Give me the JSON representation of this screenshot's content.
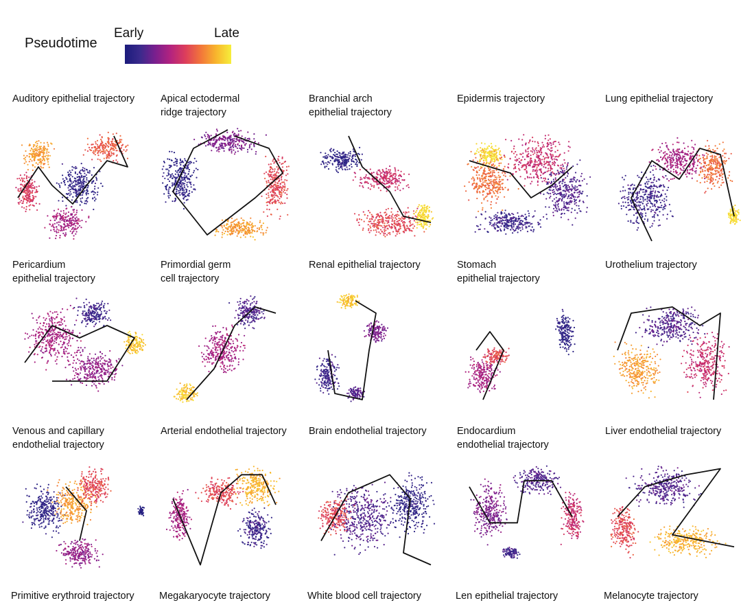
{
  "legend": {
    "title": "Pseudotime",
    "early_label": "Early",
    "late_label": "Late",
    "colors": [
      "#1b1b7c",
      "#3a2a8c",
      "#7a1f8e",
      "#b3237f",
      "#dd3e5b",
      "#f2763a",
      "#f8b52d",
      "#f6ee3b"
    ]
  },
  "chart_data": [
    {
      "type": "scatter",
      "title": "Auditory epithelial trajectory",
      "x_range": [
        0,
        1
      ],
      "y_range": [
        0,
        1
      ],
      "blobs": [
        [
          0.5,
          0.5,
          0.2,
          0.22,
          0.1
        ],
        [
          0.2,
          0.25,
          0.14,
          0.15,
          0.8
        ],
        [
          0.7,
          0.2,
          0.2,
          0.14,
          0.65
        ],
        [
          0.4,
          0.8,
          0.18,
          0.15,
          0.4
        ],
        [
          0.12,
          0.55,
          0.1,
          0.2,
          0.55
        ]
      ],
      "trajectory": [
        [
          0.05,
          0.6
        ],
        [
          0.2,
          0.35
        ],
        [
          0.3,
          0.5
        ],
        [
          0.45,
          0.65
        ],
        [
          0.55,
          0.5
        ],
        [
          0.7,
          0.3
        ],
        [
          0.85,
          0.35
        ],
        [
          0.75,
          0.1
        ]
      ]
    },
    {
      "type": "scatter",
      "title": "Apical ectodermal\nridge trajectory",
      "x_range": [
        0,
        1
      ],
      "y_range": [
        0,
        1
      ],
      "blobs": [
        [
          0.15,
          0.45,
          0.16,
          0.3,
          0.1
        ],
        [
          0.5,
          0.15,
          0.3,
          0.12,
          0.3
        ],
        [
          0.85,
          0.5,
          0.12,
          0.3,
          0.6
        ],
        [
          0.6,
          0.85,
          0.25,
          0.1,
          0.8
        ]
      ],
      "trajectory": [
        [
          0.5,
          0.05
        ],
        [
          0.25,
          0.2
        ],
        [
          0.1,
          0.55
        ],
        [
          0.35,
          0.9
        ],
        [
          0.7,
          0.6
        ],
        [
          0.9,
          0.4
        ],
        [
          0.8,
          0.2
        ],
        [
          0.55,
          0.1
        ]
      ]
    },
    {
      "type": "scatter",
      "title": "Branchial arch\nepithelial trajectory",
      "x_range": [
        0,
        1
      ],
      "y_range": [
        0,
        1
      ],
      "blobs": [
        [
          0.25,
          0.3,
          0.2,
          0.12,
          0.1
        ],
        [
          0.55,
          0.45,
          0.25,
          0.12,
          0.5
        ],
        [
          0.6,
          0.8,
          0.3,
          0.15,
          0.6
        ],
        [
          0.85,
          0.75,
          0.08,
          0.15,
          0.95
        ]
      ],
      "trajectory": [
        [
          0.3,
          0.1
        ],
        [
          0.4,
          0.35
        ],
        [
          0.6,
          0.55
        ],
        [
          0.7,
          0.75
        ],
        [
          0.9,
          0.8
        ]
      ]
    },
    {
      "type": "scatter",
      "title": "Epidermis trajectory",
      "x_range": [
        0,
        1
      ],
      "y_range": [
        0,
        1
      ],
      "blobs": [
        [
          0.25,
          0.45,
          0.22,
          0.3,
          0.7
        ],
        [
          0.6,
          0.3,
          0.3,
          0.25,
          0.5
        ],
        [
          0.8,
          0.55,
          0.2,
          0.3,
          0.2
        ],
        [
          0.4,
          0.8,
          0.3,
          0.12,
          0.15
        ],
        [
          0.25,
          0.25,
          0.12,
          0.12,
          0.95
        ]
      ],
      "trajectory": [
        [
          0.1,
          0.3
        ],
        [
          0.4,
          0.4
        ],
        [
          0.55,
          0.6
        ],
        [
          0.7,
          0.5
        ],
        [
          0.85,
          0.35
        ]
      ]
    },
    {
      "type": "scatter",
      "title": "Lung epithelial trajectory",
      "x_range": [
        0,
        1
      ],
      "y_range": [
        0,
        1
      ],
      "blobs": [
        [
          0.3,
          0.6,
          0.25,
          0.3,
          0.15
        ],
        [
          0.55,
          0.3,
          0.25,
          0.2,
          0.4
        ],
        [
          0.8,
          0.35,
          0.15,
          0.25,
          0.7
        ],
        [
          0.95,
          0.75,
          0.06,
          0.1,
          0.95
        ]
      ],
      "trajectory": [
        [
          0.35,
          0.95
        ],
        [
          0.2,
          0.6
        ],
        [
          0.35,
          0.3
        ],
        [
          0.55,
          0.45
        ],
        [
          0.7,
          0.2
        ],
        [
          0.85,
          0.25
        ],
        [
          0.95,
          0.75
        ]
      ]
    },
    {
      "type": "scatter",
      "title": "Pericardium\nepithelial trajectory",
      "x_range": [
        0,
        1
      ],
      "y_range": [
        0,
        1
      ],
      "blobs": [
        [
          0.3,
          0.4,
          0.25,
          0.3,
          0.4
        ],
        [
          0.6,
          0.2,
          0.15,
          0.15,
          0.15
        ],
        [
          0.6,
          0.65,
          0.25,
          0.2,
          0.35
        ],
        [
          0.9,
          0.45,
          0.1,
          0.12,
          0.9
        ]
      ],
      "trajectory": [
        [
          0.1,
          0.6
        ],
        [
          0.3,
          0.3
        ],
        [
          0.5,
          0.4
        ],
        [
          0.7,
          0.3
        ],
        [
          0.9,
          0.4
        ],
        [
          0.7,
          0.75
        ],
        [
          0.3,
          0.75
        ]
      ]
    },
    {
      "type": "scatter",
      "title": "Primordial germ\ncell trajectory",
      "x_range": [
        0,
        1
      ],
      "y_range": [
        0,
        1
      ],
      "blobs": [
        [
          0.45,
          0.5,
          0.2,
          0.25,
          0.4
        ],
        [
          0.65,
          0.2,
          0.15,
          0.15,
          0.2
        ],
        [
          0.2,
          0.85,
          0.1,
          0.1,
          0.9
        ]
      ],
      "trajectory": [
        [
          0.2,
          0.9
        ],
        [
          0.4,
          0.65
        ],
        [
          0.55,
          0.3
        ],
        [
          0.7,
          0.15
        ],
        [
          0.85,
          0.2
        ]
      ]
    },
    {
      "type": "scatter",
      "title": "Renal epithelial trajectory",
      "x_range": [
        0,
        1
      ],
      "y_range": [
        0,
        1
      ],
      "blobs": [
        [
          0.15,
          0.7,
          0.1,
          0.2,
          0.15
        ],
        [
          0.3,
          0.1,
          0.1,
          0.08,
          0.9
        ],
        [
          0.5,
          0.35,
          0.1,
          0.12,
          0.3
        ],
        [
          0.35,
          0.85,
          0.08,
          0.08,
          0.2
        ]
      ],
      "trajectory": [
        [
          0.15,
          0.5
        ],
        [
          0.2,
          0.85
        ],
        [
          0.4,
          0.9
        ],
        [
          0.45,
          0.5
        ],
        [
          0.5,
          0.2
        ],
        [
          0.35,
          0.1
        ]
      ]
    },
    {
      "type": "scatter",
      "title": "Stomach\nepithelial trajectory",
      "x_range": [
        0,
        1
      ],
      "y_range": [
        0,
        1
      ],
      "blobs": [
        [
          0.2,
          0.7,
          0.15,
          0.2,
          0.4
        ],
        [
          0.8,
          0.35,
          0.08,
          0.2,
          0.1
        ],
        [
          0.3,
          0.55,
          0.12,
          0.08,
          0.6
        ]
      ],
      "trajectory": [
        [
          0.15,
          0.5
        ],
        [
          0.25,
          0.35
        ],
        [
          0.35,
          0.5
        ],
        [
          0.2,
          0.9
        ]
      ]
    },
    {
      "type": "scatter",
      "title": "Urothelium trajectory",
      "x_range": [
        0,
        1
      ],
      "y_range": [
        0,
        1
      ],
      "blobs": [
        [
          0.5,
          0.3,
          0.3,
          0.2,
          0.2
        ],
        [
          0.25,
          0.65,
          0.2,
          0.25,
          0.8
        ],
        [
          0.75,
          0.6,
          0.2,
          0.3,
          0.5
        ]
      ],
      "trajectory": [
        [
          0.1,
          0.5
        ],
        [
          0.2,
          0.2
        ],
        [
          0.5,
          0.15
        ],
        [
          0.7,
          0.3
        ],
        [
          0.85,
          0.2
        ],
        [
          0.8,
          0.9
        ]
      ]
    },
    {
      "type": "scatter",
      "title": "Venous and capillary\nendothelial trajectory",
      "x_range": [
        0,
        1
      ],
      "y_range": [
        0,
        1
      ],
      "blobs": [
        [
          0.25,
          0.45,
          0.18,
          0.25,
          0.1
        ],
        [
          0.45,
          0.4,
          0.2,
          0.25,
          0.8
        ],
        [
          0.6,
          0.25,
          0.15,
          0.2,
          0.6
        ],
        [
          0.5,
          0.8,
          0.2,
          0.15,
          0.35
        ],
        [
          0.95,
          0.45,
          0.03,
          0.05,
          0.05
        ]
      ],
      "trajectory": [
        [
          0.4,
          0.25
        ],
        [
          0.55,
          0.45
        ],
        [
          0.5,
          0.7
        ]
      ]
    },
    {
      "type": "scatter",
      "title": "Arterial endothelial trajectory",
      "x_range": [
        0,
        1
      ],
      "y_range": [
        0,
        1
      ],
      "blobs": [
        [
          0.15,
          0.5,
          0.1,
          0.25,
          0.4
        ],
        [
          0.45,
          0.3,
          0.2,
          0.15,
          0.6
        ],
        [
          0.7,
          0.25,
          0.2,
          0.2,
          0.85
        ],
        [
          0.7,
          0.6,
          0.15,
          0.2,
          0.15
        ]
      ],
      "trajectory": [
        [
          0.1,
          0.35
        ],
        [
          0.3,
          0.9
        ],
        [
          0.45,
          0.3
        ],
        [
          0.6,
          0.15
        ],
        [
          0.75,
          0.15
        ],
        [
          0.85,
          0.4
        ]
      ]
    },
    {
      "type": "scatter",
      "title": "Brain endothelial trajectory",
      "x_range": [
        0,
        1
      ],
      "y_range": [
        0,
        1
      ],
      "blobs": [
        [
          0.4,
          0.5,
          0.3,
          0.35,
          0.2
        ],
        [
          0.75,
          0.4,
          0.2,
          0.3,
          0.1
        ],
        [
          0.2,
          0.5,
          0.15,
          0.2,
          0.6
        ]
      ],
      "trajectory": [
        [
          0.1,
          0.7
        ],
        [
          0.3,
          0.3
        ],
        [
          0.6,
          0.15
        ],
        [
          0.75,
          0.35
        ],
        [
          0.7,
          0.8
        ],
        [
          0.9,
          0.9
        ]
      ]
    },
    {
      "type": "scatter",
      "title": "Endocardium\nendothelial trajectory",
      "x_range": [
        0,
        1
      ],
      "y_range": [
        0,
        1
      ],
      "blobs": [
        [
          0.25,
          0.45,
          0.15,
          0.3,
          0.3
        ],
        [
          0.6,
          0.2,
          0.2,
          0.15,
          0.2
        ],
        [
          0.85,
          0.5,
          0.1,
          0.25,
          0.5
        ],
        [
          0.4,
          0.8,
          0.08,
          0.06,
          0.15
        ]
      ],
      "trajectory": [
        [
          0.1,
          0.25
        ],
        [
          0.25,
          0.55
        ],
        [
          0.45,
          0.55
        ],
        [
          0.5,
          0.2
        ],
        [
          0.7,
          0.2
        ],
        [
          0.85,
          0.5
        ]
      ]
    },
    {
      "type": "scatter",
      "title": "Liver endothelial trajectory",
      "x_range": [
        0,
        1
      ],
      "y_range": [
        0,
        1
      ],
      "blobs": [
        [
          0.45,
          0.25,
          0.3,
          0.2,
          0.2
        ],
        [
          0.15,
          0.6,
          0.12,
          0.25,
          0.6
        ],
        [
          0.6,
          0.7,
          0.3,
          0.15,
          0.85
        ]
      ],
      "trajectory": [
        [
          0.1,
          0.5
        ],
        [
          0.3,
          0.25
        ],
        [
          0.6,
          0.15
        ],
        [
          0.85,
          0.1
        ],
        [
          0.5,
          0.65
        ],
        [
          0.95,
          0.75
        ]
      ]
    },
    {
      "type": "scatter",
      "title": "Primitive erythroid trajectory",
      "x_range": [
        0,
        1
      ],
      "y_range": [
        0,
        1
      ],
      "blobs": [],
      "trajectory": []
    },
    {
      "type": "scatter",
      "title": "Megakaryocyte trajectory",
      "x_range": [
        0,
        1
      ],
      "y_range": [
        0,
        1
      ],
      "blobs": [],
      "trajectory": []
    },
    {
      "type": "scatter",
      "title": "White blood cell trajectory",
      "x_range": [
        0,
        1
      ],
      "y_range": [
        0,
        1
      ],
      "blobs": [],
      "trajectory": []
    },
    {
      "type": "scatter",
      "title": "Len epithelial trajectory",
      "x_range": [
        0,
        1
      ],
      "y_range": [
        0,
        1
      ],
      "blobs": [],
      "trajectory": []
    },
    {
      "type": "scatter",
      "title": "Melanocyte trajectory",
      "x_range": [
        0,
        1
      ],
      "y_range": [
        0,
        1
      ],
      "blobs": [],
      "trajectory": []
    }
  ]
}
